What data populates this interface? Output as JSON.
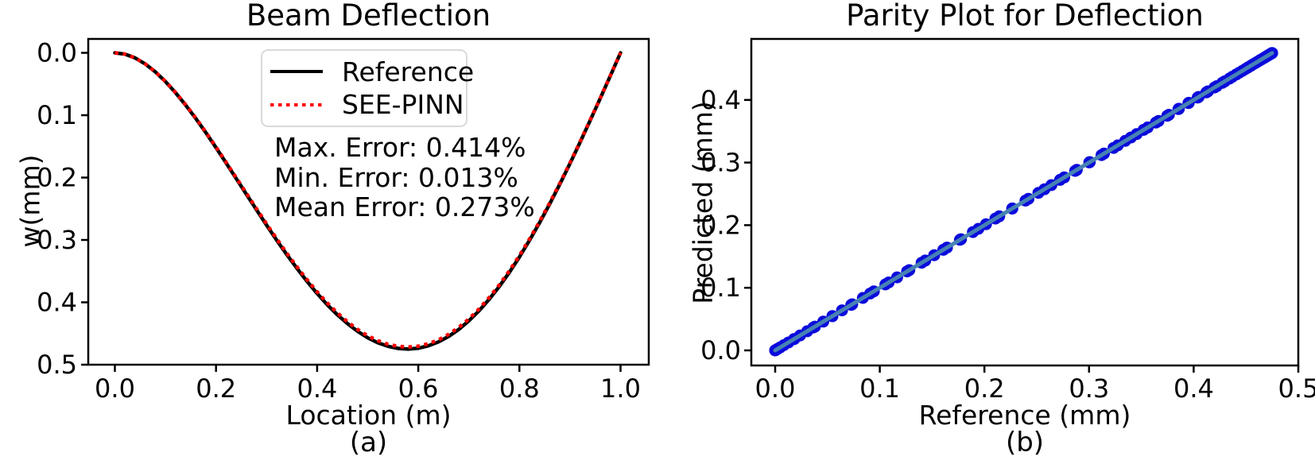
{
  "chart_data": [
    {
      "type": "line",
      "title": "Beam Deflection",
      "xlabel": "Location (m)",
      "ylabel": "w(mm)",
      "caption": "(a)",
      "xticks": [
        "0.0",
        "0.2",
        "0.4",
        "0.6",
        "0.8",
        "1.0"
      ],
      "yticks": [
        "0.0",
        "0.1",
        "0.2",
        "0.3",
        "0.4",
        "0.5"
      ],
      "xlim": [
        -0.053,
        1.056
      ],
      "ylim": [
        -0.022,
        0.5
      ],
      "y_axis_inverted": true,
      "grid": false,
      "legend_position": "upper center",
      "x": [
        0,
        0.02,
        0.04,
        0.06,
        0.08,
        0.1,
        0.12,
        0.14,
        0.16,
        0.18,
        0.2,
        0.22,
        0.24,
        0.26,
        0.28,
        0.3,
        0.32,
        0.34,
        0.36,
        0.38,
        0.4,
        0.42,
        0.44,
        0.46,
        0.48,
        0.5,
        0.52,
        0.54,
        0.56,
        0.58,
        0.6,
        0.62,
        0.64,
        0.66,
        0.68,
        0.7,
        0.72,
        0.74,
        0.76,
        0.78,
        0.8,
        0.82,
        0.84,
        0.86,
        0.88,
        0.9,
        0.92,
        0.94,
        0.96,
        0.98,
        1.0
      ],
      "series": [
        {
          "name": "Reference",
          "color": "#000000",
          "line_style": "solid",
          "values": [
            0,
            0.0021,
            0.0082,
            0.0178,
            0.0306,
            0.046,
            0.0639,
            0.0838,
            0.1053,
            0.1282,
            0.152,
            0.1766,
            0.2015,
            0.2267,
            0.2516,
            0.2763,
            0.3002,
            0.3234,
            0.3455,
            0.3664,
            0.3859,
            0.4038,
            0.4199,
            0.4342,
            0.4465,
            0.4568,
            0.4648,
            0.4705,
            0.4739,
            0.475,
            0.4736,
            0.4697,
            0.4634,
            0.4546,
            0.4434,
            0.4297,
            0.4137,
            0.3954,
            0.3748,
            0.3521,
            0.3274,
            0.3007,
            0.2723,
            0.2421,
            0.2105,
            0.1776,
            0.1435,
            0.1085,
            0.0727,
            0.0365,
            0
          ]
        },
        {
          "name": "SEE-PINN",
          "color": "#ff0000",
          "line_style": "dotted",
          "values": [
            0,
            0.0021,
            0.0081,
            0.0177,
            0.0304,
            0.0457,
            0.0635,
            0.0832,
            0.1046,
            0.1273,
            0.1509,
            0.1754,
            0.2001,
            0.2251,
            0.2498,
            0.2744,
            0.2981,
            0.3211,
            0.3431,
            0.3638,
            0.3832,
            0.401,
            0.417,
            0.4312,
            0.4434,
            0.4536,
            0.4615,
            0.4672,
            0.4706,
            0.4717,
            0.4703,
            0.4664,
            0.4602,
            0.4514,
            0.4403,
            0.4267,
            0.4108,
            0.3926,
            0.3722,
            0.3496,
            0.3251,
            0.2986,
            0.2704,
            0.2404,
            0.209,
            0.1764,
            0.1425,
            0.1077,
            0.0722,
            0.0362,
            0
          ]
        }
      ],
      "annotations": [
        "Max. Error: 0.414%",
        "Min. Error: 0.013%",
        "Mean Error: 0.273%"
      ]
    },
    {
      "type": "scatter",
      "title": "Parity Plot for Deflection",
      "xlabel": "Reference (mm)",
      "ylabel": "Predicted (mm)",
      "caption": "(b)",
      "xticks": [
        "0.0",
        "0.1",
        "0.2",
        "0.3",
        "0.4",
        "0.5"
      ],
      "yticks": [
        "0.0",
        "0.1",
        "0.2",
        "0.3",
        "0.4"
      ],
      "xlim": [
        -0.023,
        0.5
      ],
      "ylim": [
        -0.024,
        0.4975
      ],
      "grid": false,
      "marker_color": "#0b0bdc",
      "identity_line_color": "#4682b4",
      "points": {
        "predicted_equals_reference": true,
        "reference": [
          0,
          0.0005,
          0.0021,
          0.0047,
          0.0082,
          0.0126,
          0.0178,
          0.0238,
          0.0306,
          0.038,
          0.046,
          0.0547,
          0.0639,
          0.0736,
          0.0838,
          0.0943,
          0.1053,
          0.1166,
          0.1282,
          0.14,
          0.152,
          0.1642,
          0.1766,
          0.189,
          0.2015,
          0.2141,
          0.2267,
          0.2392,
          0.2516,
          0.264,
          0.2763,
          0.2883,
          0.3002,
          0.3119,
          0.3234,
          0.3346,
          0.3455,
          0.3561,
          0.3664,
          0.3763,
          0.3859,
          0.395,
          0.4038,
          0.4121,
          0.4199,
          0.4273,
          0.4342,
          0.4406,
          0.4465,
          0.4519,
          0.4568,
          0.461,
          0.4648,
          0.4679,
          0.4705,
          0.4725,
          0.4739,
          0.4748,
          0.475,
          0.4746,
          0.4736,
          0.4719,
          0.4697,
          0.4668,
          0.4634,
          0.4593,
          0.4546,
          0.4493,
          0.4434,
          0.4368,
          0.4297,
          0.422,
          0.4137,
          0.4048,
          0.3954,
          0.3854,
          0.3748,
          0.3638,
          0.3521,
          0.34,
          0.3274,
          0.3143,
          0.3007,
          0.2867,
          0.2723,
          0.2574,
          0.2421,
          0.2265,
          0.2105,
          0.1942,
          0.1776,
          0.1607,
          0.1435,
          0.1261,
          0.1085,
          0.0907,
          0.0727,
          0.0547,
          0.0365,
          0.0183,
          0
        ]
      }
    }
  ]
}
